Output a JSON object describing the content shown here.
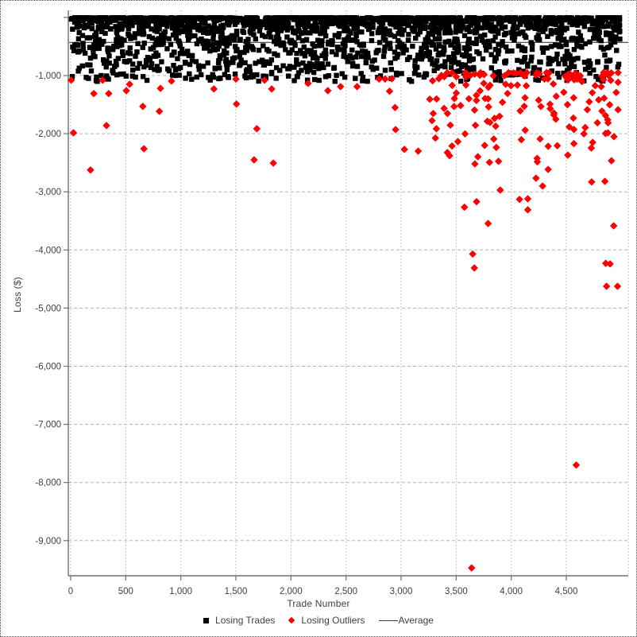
{
  "panel": {
    "background": "#ffffff",
    "border_color": "#4a4a4a"
  },
  "colors": {
    "losing_trades": "#000000",
    "losing_outliers": "#fe0000",
    "average_line": "#3c3c3c",
    "grid": "#b4b4b4",
    "axis": "#6f6f6f",
    "text": "#3e3e46"
  },
  "chart_data": {
    "type": "scatter",
    "title": "",
    "xlabel": "Trade Number",
    "ylabel": "Loss ($)",
    "xlim": [
      0,
      5050
    ],
    "ylim": [
      -9600,
      150
    ],
    "grid": {
      "show": true,
      "vertical_style": "dotted",
      "horizontal_style": "dashed"
    },
    "legend_position": "bottom",
    "x_tick_values": [
      0,
      500,
      1000,
      1500,
      2000,
      2500,
      3000,
      3500,
      4000,
      4500
    ],
    "x_tick_labels": [
      "0",
      "500",
      "1,000",
      "1,500",
      "2,000",
      "2,500",
      "3,000",
      "3,500",
      "4,000",
      "4,500"
    ],
    "y_tick_values": [
      -1000,
      -2000,
      -3000,
      -4000,
      -5000,
      -6000,
      -7000,
      -8000,
      -9000
    ],
    "y_tick_labels": [
      "-1,000",
      "-2,000",
      "-3,000",
      "-4,000",
      "-5,000",
      "-6,000",
      "-7,000",
      "-8,000",
      "-9,000"
    ],
    "series": [
      {
        "name": "Losing Trades",
        "marker": "square",
        "color_key": "losing_trades",
        "description": "Dense band of roughly two thousand losing trades between $0 and about -$1,100, spanning all trade numbers 0-5000; density is highest near $0 and thins toward -$1,000.",
        "distribution": {
          "kind": "random_band",
          "seed": 20240,
          "count": 2100,
          "x_range": [
            5,
            4990
          ],
          "loss_range": [
            5,
            1100
          ],
          "power": 2.6
        }
      },
      {
        "name": "Losing Outliers",
        "marker": "diamond",
        "color_key": "losing_outliers",
        "description": "Losses beyond about -$1,000. Sparse before trade ~3250; a dense cluster from trade ~3250-5000 between -$950 and -$2,500; deepest outliers listed explicitly, including -$7,700 near trade 4590 and -$9,470 near trade 3640.",
        "points": [
          [
            5,
            -1080
          ],
          [
            25,
            -1985
          ],
          [
            180,
            -2625
          ],
          [
            210,
            -1310
          ],
          [
            290,
            -1080
          ],
          [
            325,
            -1860
          ],
          [
            345,
            -1310
          ],
          [
            505,
            -1260
          ],
          [
            535,
            -1150
          ],
          [
            655,
            -1530
          ],
          [
            665,
            -2260
          ],
          [
            805,
            -1615
          ],
          [
            815,
            -1220
          ],
          [
            915,
            -1095
          ],
          [
            1300,
            -1230
          ],
          [
            1500,
            -1060
          ],
          [
            1505,
            -1490
          ],
          [
            1665,
            -2450
          ],
          [
            1690,
            -1915
          ],
          [
            1760,
            -1080
          ],
          [
            1825,
            -1230
          ],
          [
            1840,
            -2505
          ],
          [
            2155,
            -1135
          ],
          [
            2335,
            -1260
          ],
          [
            2450,
            -1190
          ],
          [
            2600,
            -1190
          ],
          [
            2800,
            -1060
          ],
          [
            2855,
            -1060
          ],
          [
            2895,
            -1270
          ],
          [
            2915,
            -1055
          ],
          [
            2945,
            -1550
          ],
          [
            2950,
            -1930
          ],
          [
            3030,
            -2270
          ],
          [
            3155,
            -2300
          ],
          [
            3320,
            -1915
          ],
          [
            3420,
            -2325
          ],
          [
            3575,
            -3265
          ],
          [
            3640,
            -9470
          ],
          [
            3650,
            -4070
          ],
          [
            3665,
            -4310
          ],
          [
            3670,
            -2520
          ],
          [
            3685,
            -3170
          ],
          [
            3790,
            -3545
          ],
          [
            3900,
            -2970
          ],
          [
            4075,
            -3130
          ],
          [
            4150,
            -3120
          ],
          [
            4150,
            -3310
          ],
          [
            4225,
            -2765
          ],
          [
            4285,
            -2900
          ],
          [
            4335,
            -2615
          ],
          [
            4590,
            -7700
          ],
          [
            4730,
            -2830
          ],
          [
            4850,
            -2820
          ],
          [
            4858,
            -4230
          ],
          [
            4897,
            -4240
          ],
          [
            4865,
            -4625
          ],
          [
            4965,
            -4625
          ],
          [
            4930,
            -3585
          ]
        ],
        "distribution": {
          "kind": "random_band",
          "seed": 911,
          "count": 150,
          "x_range": [
            3260,
            4985
          ],
          "loss_range": [
            950,
            2510
          ],
          "power": 2.0
        }
      },
      {
        "name": "Average",
        "marker": "line",
        "color_key": "average_line",
        "value": -430,
        "description": "Horizontal average-loss line; it lies inside the dense black band so it is hidden behind the markers."
      }
    ]
  },
  "legend": {
    "losing_trades_label": "Losing Trades",
    "losing_outliers_label": "Losing Outliers",
    "average_label": "Average"
  }
}
